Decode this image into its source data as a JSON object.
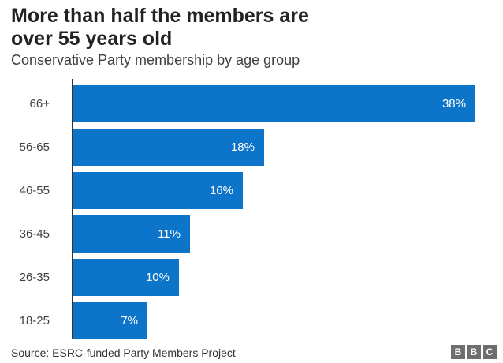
{
  "header": {
    "title_lines": [
      "More than half the members are",
      "over 55 years old"
    ],
    "subtitle": "Conservative Party membership by age group"
  },
  "chart_data": {
    "type": "bar",
    "orientation": "horizontal",
    "title": "Conservative Party membership by age group",
    "categories": [
      "66+",
      "56-65",
      "46-55",
      "36-45",
      "26-35",
      "18-25"
    ],
    "values": [
      38,
      18,
      16,
      11,
      10,
      7
    ],
    "value_labels": [
      "38%",
      "18%",
      "16%",
      "11%",
      "10%",
      "7%"
    ],
    "xlabel": "",
    "ylabel": "",
    "xlim": [
      0,
      40
    ],
    "grid": false,
    "legend": false,
    "bar_color": "#0d75c9",
    "axis_color": "#333333"
  },
  "footer": {
    "source": "Source: ESRC-funded Party Members Project",
    "logo": {
      "name": "bbc-logo",
      "letters": [
        "B",
        "B",
        "C"
      ],
      "block_color": "#6e6e6e"
    }
  }
}
